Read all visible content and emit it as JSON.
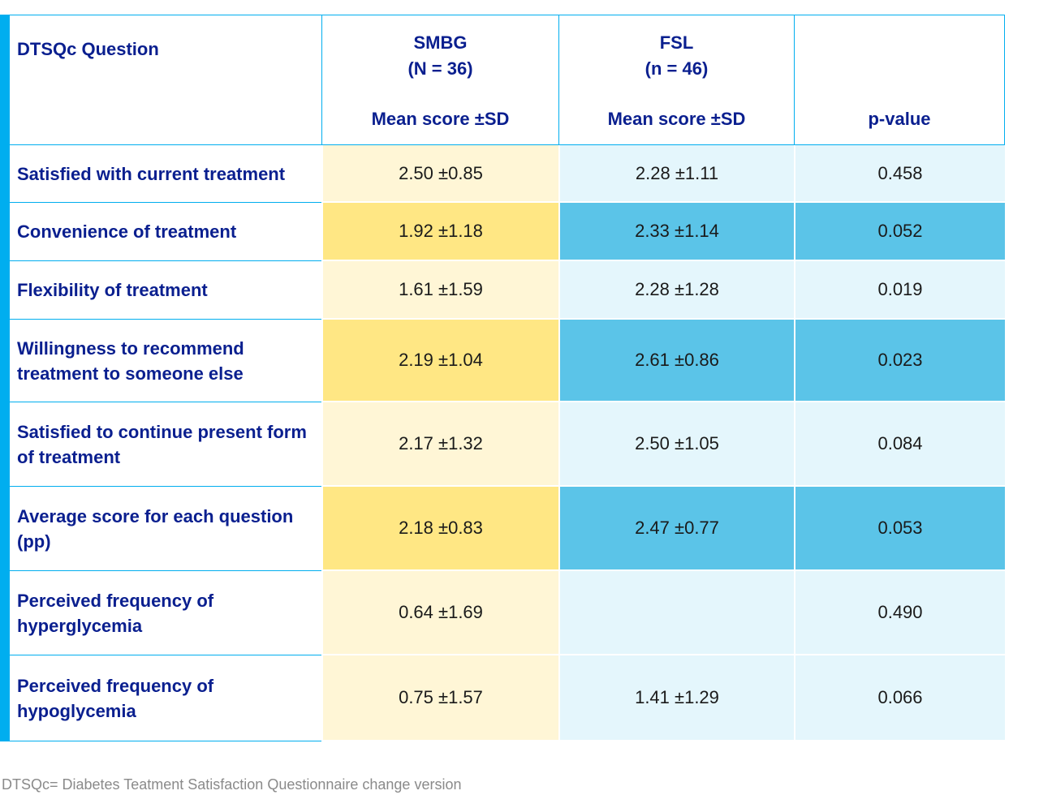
{
  "header": {
    "question": "DTSQc Question",
    "smbg_name": "SMBG",
    "smbg_n": "(N = 36)",
    "smbg_metric": "Mean score ±SD",
    "fsl_name": "FSL",
    "fsl_n": "(n = 46)",
    "fsl_metric": "Mean score ±SD",
    "pvalue": "p-value"
  },
  "rows": [
    {
      "question": "Satisfied with current treatment",
      "smbg": "2.50 ±0.85",
      "fsl": "2.28 ±1.11",
      "p": "0.458"
    },
    {
      "question": "Convenience of treatment",
      "smbg": "1.92 ±1.18",
      "fsl": "2.33 ±1.14",
      "p": "0.052"
    },
    {
      "question": "Flexibility of treatment",
      "smbg": "1.61 ±1.59",
      "fsl": "2.28 ±1.28",
      "p": "0.019"
    },
    {
      "question": "Willingness to recommend treatment to someone else",
      "smbg": "2.19 ±1.04",
      "fsl": "2.61 ±0.86",
      "p": "0.023"
    },
    {
      "question": "Satisfied to continue present form of treatment",
      "smbg": "2.17 ±1.32",
      "fsl": "2.50 ±1.05",
      "p": "0.084"
    },
    {
      "question": "Average score for each question (pp)",
      "smbg": "2.18 ±0.83",
      "fsl": "2.47 ±0.77",
      "p": "0.053"
    },
    {
      "question": "Perceived frequency of hyperglycemia",
      "smbg": "0.64 ±1.69",
      "fsl": "",
      "p": "0.490"
    },
    {
      "question": "Perceived frequency of hypoglycemia",
      "smbg": "0.75 ±1.57",
      "fsl": "1.41 ±1.29",
      "p": "0.066"
    }
  ],
  "footnote": "DTSQc= Diabetes Teatment Satisfaction Questionnaire change version",
  "colors": {
    "accent": "#00aeef",
    "heading_text": "#0a1f8f",
    "smbg_light": "#fff6d6",
    "smbg_dark": "#ffe784",
    "fsl_light": "#e4f6fc",
    "fsl_dark": "#5bc4e8"
  }
}
